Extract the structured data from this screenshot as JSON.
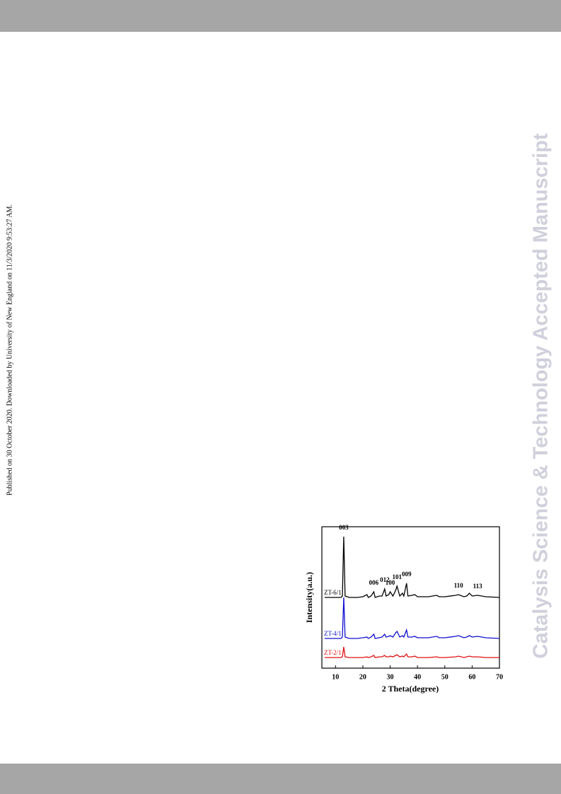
{
  "side_note": "Published on 30 October 2020. Downloaded by University of New England on 11/3/2020 9:53:27 AM.",
  "watermark": "Catalysis Science & Technology Accepted Manuscript",
  "chart_data": {
    "type": "line",
    "xlabel": "2 Theta(degree)",
    "ylabel": "Intensity(a.u.)",
    "xlim": [
      5,
      70
    ],
    "xticks": [
      10,
      20,
      30,
      40,
      50,
      60,
      70
    ],
    "ylim": [
      0,
      100
    ],
    "x": [
      6,
      8,
      10,
      12,
      12.5,
      13,
      13.5,
      15,
      18,
      20,
      21.5,
      22,
      23,
      24,
      24.5,
      26,
      27,
      28,
      28.5,
      29.5,
      30,
      31,
      32,
      32.5,
      33.5,
      34.5,
      35,
      36,
      36.5,
      38,
      39,
      40,
      44,
      47,
      48,
      50,
      54,
      55,
      57,
      58,
      59,
      60,
      62,
      65,
      70
    ],
    "series": [
      {
        "name": "ZT-6/1",
        "color": "#000000",
        "values": [
          50,
          50,
          50,
          50,
          51,
          93,
          51,
          50,
          50,
          50.5,
          52,
          50,
          51,
          54,
          50,
          51,
          51,
          56,
          51,
          52,
          54,
          51,
          55,
          58,
          51,
          53,
          51,
          60,
          51,
          51.5,
          52,
          50.5,
          50.5,
          51.5,
          50.5,
          50.5,
          51.5,
          52,
          50.5,
          51,
          53,
          51,
          51.5,
          50.5,
          50
        ]
      },
      {
        "name": "ZT-4/1",
        "color": "#1010d0",
        "values": [
          21,
          21,
          21,
          21,
          22,
          50,
          22,
          21,
          21,
          21.5,
          22,
          21,
          22,
          24,
          21,
          21.5,
          22,
          24,
          22,
          22.5,
          23,
          22,
          25,
          26,
          22,
          23,
          22,
          27,
          22,
          22,
          22.5,
          21.5,
          21.5,
          22.5,
          21.5,
          21.5,
          22.5,
          23,
          21.5,
          22,
          23,
          22,
          22.5,
          21.5,
          21
        ]
      },
      {
        "name": "ZT-2/1",
        "color": "#e01010",
        "values": [
          7.5,
          7.5,
          7.5,
          7.5,
          8,
          15,
          8,
          7.5,
          7.5,
          7.5,
          8,
          7.5,
          8,
          9,
          7.5,
          8,
          8,
          9,
          8,
          8,
          8.5,
          8,
          9,
          9.5,
          8,
          8.5,
          8,
          10,
          8,
          8,
          8.5,
          7.5,
          7.5,
          8,
          7.5,
          7.5,
          8,
          8.5,
          7.5,
          8,
          8.5,
          8,
          8,
          7.5,
          7.5
        ]
      }
    ],
    "annotations": [
      {
        "label": "003",
        "x": 13
      },
      {
        "label": "006",
        "x": 24
      },
      {
        "label": "012",
        "x": 28
      },
      {
        "label": "100",
        "x": 30
      },
      {
        "label": "101",
        "x": 32.5
      },
      {
        "label": "009",
        "x": 36
      },
      {
        "label": "110",
        "x": 55
      },
      {
        "label": "113",
        "x": 62
      }
    ]
  }
}
